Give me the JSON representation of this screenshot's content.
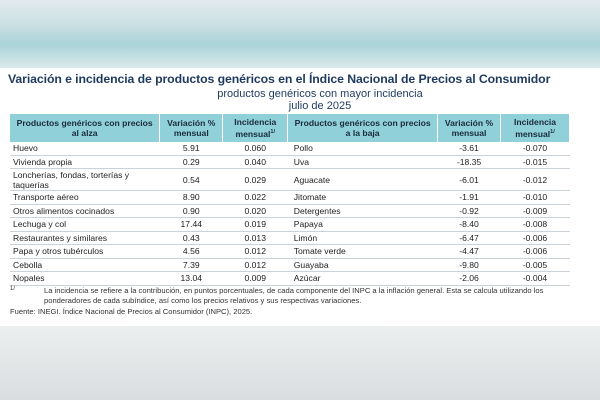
{
  "title": "Variación e incidencia de productos genéricos en el Índice Nacional de Precios al Consumidor",
  "subtitle": "productos genéricos con mayor incidencia",
  "date": "julio de 2025",
  "headers": {
    "up_products": "Productos genéricos con precios al alza",
    "up_variation": "Variación % mensual",
    "up_incidence": "Incidencia mensual",
    "down_products": "Productos genéricos con precios a la baja",
    "down_variation": "Variación % mensual",
    "down_incidence": "Incidencia mensual",
    "footnote_mark": "1/"
  },
  "rows": [
    {
      "up_name": "Huevo",
      "up_var": "5.91",
      "up_inc": "0.060",
      "down_name": "Pollo",
      "down_var": "-3.61",
      "down_inc": "-0.070"
    },
    {
      "up_name": "Vivienda propia",
      "up_var": "0.29",
      "up_inc": "0.040",
      "down_name": "Uva",
      "down_var": "-18.35",
      "down_inc": "-0.015"
    },
    {
      "up_name": "Loncherías, fondas, torterías y taquerías",
      "up_var": "0.54",
      "up_inc": "0.029",
      "down_name": "Aguacate",
      "down_var": "-6.01",
      "down_inc": "-0.012"
    },
    {
      "up_name": "Transporte aéreo",
      "up_var": "8.90",
      "up_inc": "0.022",
      "down_name": "Jitomate",
      "down_var": "-1.91",
      "down_inc": "-0.010"
    },
    {
      "up_name": "Otros alimentos cocinados",
      "up_var": "0.90",
      "up_inc": "0.020",
      "down_name": "Detergentes",
      "down_var": "-0.92",
      "down_inc": "-0.009"
    },
    {
      "up_name": "Lechuga y col",
      "up_var": "17.44",
      "up_inc": "0.019",
      "down_name": "Papaya",
      "down_var": "-8.40",
      "down_inc": "-0.008"
    },
    {
      "up_name": "Restaurantes y similares",
      "up_var": "0.43",
      "up_inc": "0.013",
      "down_name": "Limón",
      "down_var": "-6.47",
      "down_inc": "-0.006"
    },
    {
      "up_name": "Papa y otros tubérculos",
      "up_var": "4.56",
      "up_inc": "0.012",
      "down_name": "Tomate verde",
      "down_var": "-4.47",
      "down_inc": "-0.006"
    },
    {
      "up_name": "Cebolla",
      "up_var": "7.39",
      "up_inc": "0.012",
      "down_name": "Guayaba",
      "down_var": "-9.80",
      "down_inc": "-0.005"
    },
    {
      "up_name": "Nopales",
      "up_var": "13.04",
      "up_inc": "0.009",
      "down_name": "Azúcar",
      "down_var": "-2.06",
      "down_inc": "-0.004"
    }
  ],
  "footnote": {
    "mark": "1/",
    "text": "La incidencia se refiere a la contribución, en puntos porcentuales, de cada componente del INPC a la inflación general. Esta se calcula utilizando los ponderadores de cada subíndice, así como los precios relativos y sus respectivas variaciones."
  },
  "source": "Fuente: INEGI. Índice Nacional de Precios al Consumidor (INPC), 2025."
}
